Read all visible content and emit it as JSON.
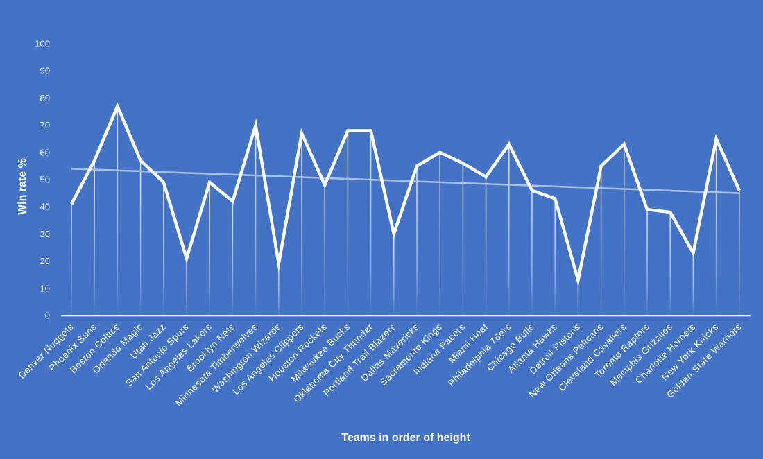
{
  "chart_data": {
    "type": "line",
    "title": "",
    "xlabel": "Teams in order of height",
    "ylabel": "Win rate %",
    "ylim": [
      0,
      100
    ],
    "yticks": [
      0,
      10,
      20,
      30,
      40,
      50,
      60,
      70,
      80,
      90,
      100
    ],
    "grid": false,
    "legend": "none",
    "drop_lines": true,
    "categories": [
      "Denver Nuggets",
      "Phoenix Suns",
      "Boston Celtics",
      "Orlando Magic",
      "Utah Jazz",
      "San Antonio Spurs",
      "Los Angeles Lakers",
      "Brooklyn Nets",
      "Minnesota Timberwolves",
      "Washington Wizards",
      "Los Angeles Clippers",
      "Houston Rockets",
      "Milwaukee Bucks",
      "Oklahoma City Thunder",
      "Portland Trail Blazers",
      "Dallas Mavericks",
      "Sacramento Kings",
      "Indiana Pacers",
      "Miami Heat",
      "Philadelphia 76ers",
      "Chicago Bulls",
      "Atlanta Hawks",
      "Detroit Pistons",
      "New Orleans Pelicans",
      "Cleveland Cavaliers",
      "Toronto Raptors",
      "Memphis Grizzlies",
      "Charlotte Hornets",
      "New York Knicks",
      "Golden State Warriors"
    ],
    "series": [
      {
        "values": [
          41,
          57,
          77,
          57,
          49,
          21,
          49,
          42,
          70,
          19,
          67,
          48,
          68,
          68,
          30,
          55,
          60,
          56,
          51,
          63,
          46,
          43,
          13,
          55,
          63,
          39,
          38,
          23,
          65,
          46
        ]
      }
    ],
    "trendline": {
      "type": "linear",
      "start": 54,
      "end": 45
    },
    "colors": {
      "background": "#4472c4",
      "line": "#ffffff",
      "trendline": "#a9bfe6",
      "axis": "#ffffff",
      "text": "#ffffff"
    }
  }
}
